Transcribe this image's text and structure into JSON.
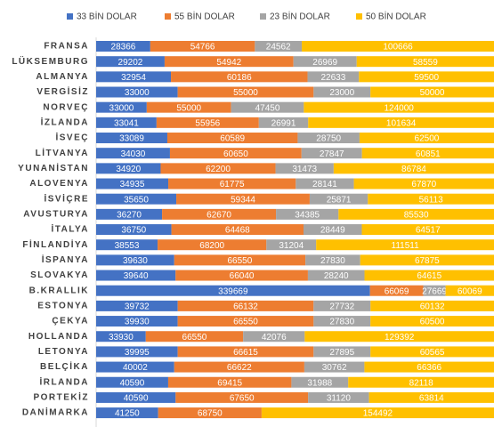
{
  "chart_data": {
    "type": "bar",
    "stacking": "percent",
    "orientation": "horizontal",
    "categories": [
      "FRANSA",
      "LÜKSEMBURG",
      "ALMANYA",
      "VERGİSİZ",
      "NORVEÇ",
      "İZLANDA",
      "İSVEÇ",
      "LİTVANYA",
      "YUNANİSTAN",
      "ALOVENYA",
      "İSVİÇRE",
      "AVUSTURYA",
      "İTALYA",
      "FİNLANDİYA",
      "İSPANYA",
      "SLOVAKYA",
      "B.KRALLIK",
      "ESTONYA",
      "ÇEKYA",
      "HOLLANDA",
      "LETONYA",
      "BELÇİKA",
      "İRLANDA",
      "PORTEKİZ",
      "DANİMARKA"
    ],
    "series": [
      {
        "name": "33 BİN DOLAR",
        "color": "#4472c4",
        "values": [
          28366,
          29202,
          32954,
          33000,
          33000,
          33041,
          33089,
          34030,
          34920,
          34935,
          35650,
          36270,
          36750,
          38553,
          39630,
          39640,
          339669,
          39732,
          39930,
          33930,
          39995,
          40002,
          40590,
          40590,
          41250
        ]
      },
      {
        "name": "55 BİN DOLAR",
        "color": "#ed7d31",
        "values": [
          54766,
          54942,
          60186,
          55000,
          55000,
          55956,
          60589,
          60650,
          62200,
          61775,
          59344,
          62670,
          64468,
          68200,
          66550,
          66040,
          66069,
          66132,
          66550,
          66550,
          66615,
          66622,
          69415,
          67650,
          68750
        ]
      },
      {
        "name": "23 BİN DOLAR",
        "color": "#a5a5a5",
        "values": [
          24562,
          26969,
          22633,
          23000,
          47450,
          26991,
          28750,
          27847,
          31473,
          28141,
          25871,
          34385,
          28449,
          31204,
          27830,
          28240,
          27669,
          27732,
          27830,
          42076,
          27895,
          30762,
          31988,
          31120,
          null
        ]
      },
      {
        "name": "50 BİN DOLAR",
        "color": "#ffc000",
        "values": [
          100666,
          58559,
          59500,
          50000,
          124000,
          101634,
          62500,
          60851,
          86784,
          67870,
          56113,
          85530,
          64517,
          111511,
          67875,
          64615,
          60069,
          60132,
          60500,
          129392,
          60565,
          66366,
          82118,
          63814,
          154492
        ]
      }
    ]
  }
}
